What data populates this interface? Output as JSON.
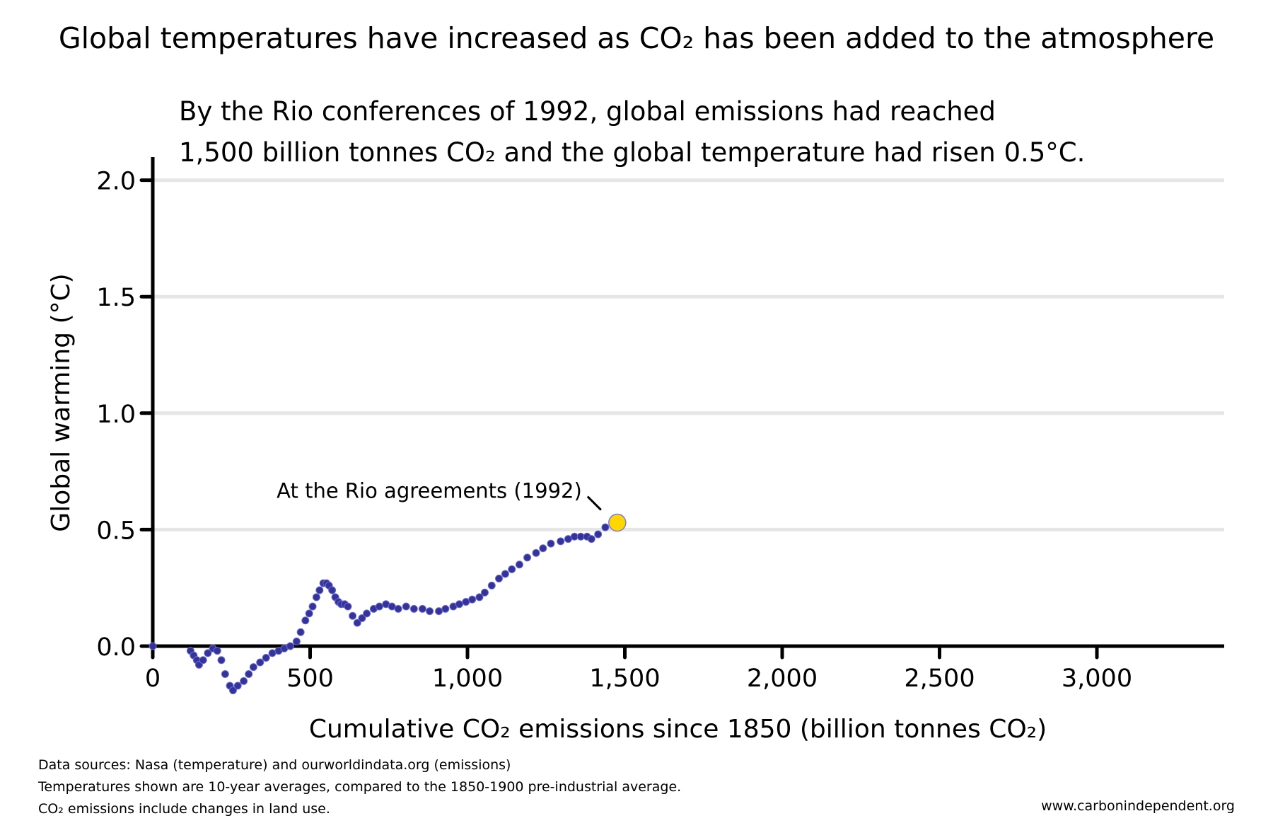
{
  "title": "Global temperatures have increased as CO₂ has been added to the atmosphere",
  "subtitle_lines": [
    "By the Rio conferences of 1992, global emissions had reached",
    "1,500 billion tonnes CO₂ and the global temperature had risen 0.5°C."
  ],
  "footer": {
    "sources": "Data sources: Nasa (temperature) and ourworldindata.org (emissions)",
    "note1": "Temperatures shown are 10-year averages, compared to the 1850-1900 pre-industrial average.",
    "note2": "CO₂ emissions include changes in land use.",
    "website": "www.carbonindependent.org"
  },
  "chart_data": {
    "type": "scatter",
    "xlabel": "Cumulative CO₂ emissions since 1850 (billion tonnes CO₂)",
    "ylabel": "Global warming (°C)",
    "xlim": [
      0,
      3400
    ],
    "ylim": [
      0,
      2.0
    ],
    "xticks": [
      0,
      500,
      1000,
      1500,
      2000,
      2500,
      3000
    ],
    "xtick_labels": [
      "0",
      "500",
      "1,000",
      "1,500",
      "2,000",
      "2,500",
      "3,000"
    ],
    "yticks": [
      0,
      0.5,
      1.0,
      1.5,
      2.0
    ],
    "ytick_labels": [
      "0.0",
      "0.5",
      "1.0",
      "1.5",
      "2.0"
    ],
    "grid": "horizontal",
    "colors": {
      "series": "#33339a",
      "highlight": "#ffd700",
      "grid": "#e6e6e6"
    },
    "series": [
      {
        "x": [
          0,
          120,
          130,
          140,
          147,
          160,
          175,
          191,
          205,
          218,
          230,
          245,
          255,
          270,
          289,
          305,
          320,
          341,
          360,
          380,
          400,
          418,
          437,
          457,
          470,
          485,
          497,
          508,
          520,
          530,
          542,
          552,
          560,
          570,
          580,
          590,
          599,
          610,
          620,
          635,
          650,
          665,
          680,
          702,
          720,
          741,
          760,
          780,
          805,
          830,
          857,
          880,
          909,
          930,
          955,
          974,
          995,
          1015,
          1038,
          1055,
          1077,
          1100,
          1120,
          1141,
          1165,
          1190,
          1218,
          1240,
          1265,
          1296,
          1320,
          1340,
          1360,
          1380,
          1394,
          1415,
          1438
        ],
        "y": [
          0,
          -0.02,
          -0.04,
          -0.06,
          -0.08,
          -0.06,
          -0.03,
          -0.01,
          -0.02,
          -0.06,
          -0.12,
          -0.17,
          -0.19,
          -0.17,
          -0.15,
          -0.12,
          -0.09,
          -0.07,
          -0.05,
          -0.03,
          -0.02,
          -0.01,
          0.0,
          0.02,
          0.06,
          0.11,
          0.14,
          0.17,
          0.21,
          0.24,
          0.27,
          0.27,
          0.26,
          0.24,
          0.21,
          0.19,
          0.18,
          0.18,
          0.17,
          0.13,
          0.1,
          0.12,
          0.14,
          0.16,
          0.17,
          0.18,
          0.17,
          0.16,
          0.17,
          0.16,
          0.16,
          0.15,
          0.15,
          0.16,
          0.17,
          0.18,
          0.19,
          0.2,
          0.21,
          0.23,
          0.26,
          0.29,
          0.31,
          0.33,
          0.35,
          0.38,
          0.4,
          0.42,
          0.44,
          0.45,
          0.46,
          0.47,
          0.47,
          0.47,
          0.46,
          0.48,
          0.51
        ]
      }
    ],
    "highlight": {
      "x": 1476,
      "y": 0.53,
      "label": "At the Rio agreements (1992)"
    }
  }
}
